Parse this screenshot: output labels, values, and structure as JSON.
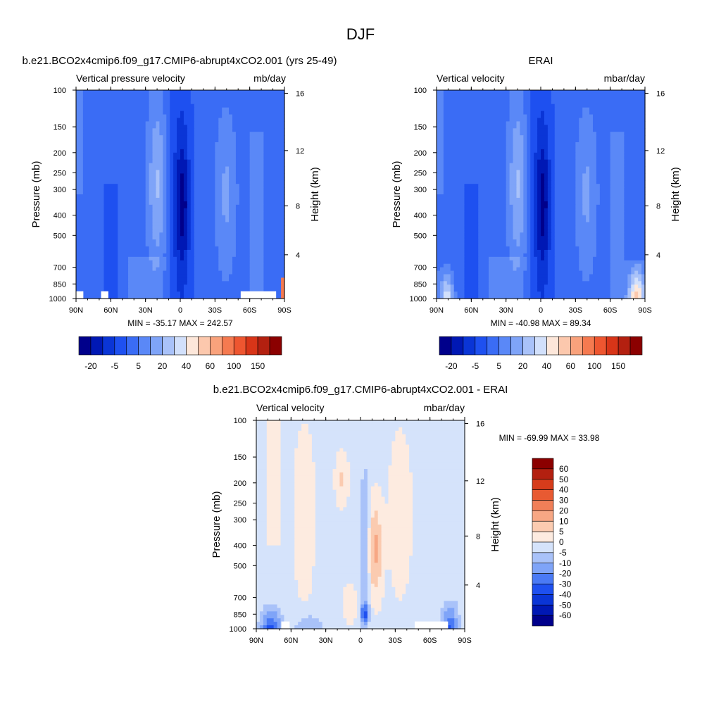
{
  "figure": {
    "season": "DJF",
    "colors": {
      "contour_levels_abs": [
        "#00008b",
        "#0018b4",
        "#0a35d6",
        "#1e50f0",
        "#3a6cf5",
        "#5a88f7",
        "#7fa4f8",
        "#a9c2f9",
        "#d2e0fb",
        "#fde7da",
        "#fcc8ad",
        "#f9a27c",
        "#f57a50",
        "#ee5630",
        "#d83518",
        "#b32010",
        "#8b0000"
      ],
      "contour_levels_diff": [
        "#00008b",
        "#0018b4",
        "#0a35d6",
        "#1e50f0",
        "#4a7af5",
        "#7fa4f8",
        "#a9c2f9",
        "#d5e3fb",
        "#fdebe0",
        "#fbcbb0",
        "#f7a784",
        "#f07f58",
        "#e85a32",
        "#d63c1b",
        "#b32010",
        "#8b0000"
      ]
    }
  },
  "chart_data": [
    {
      "type": "heatmap",
      "title": "b.e21.BCO2x4cmip6.f09_g17.CMIP6-abrupt4xCO2.001 (yrs 25-49)",
      "subtitle_left": "Vertical pressure velocity",
      "subtitle_right": "mb/day",
      "ylabel": "Pressure (mb)",
      "ylabel_right": "Height (km)",
      "x_ticks": [
        "90N",
        "60N",
        "30N",
        "0",
        "30S",
        "60S",
        "90S"
      ],
      "y_ticks": [
        "100",
        "150",
        "200",
        "250",
        "300",
        "400",
        "500",
        "700",
        "850",
        "1000"
      ],
      "y_ticks_right": [
        "16",
        "12",
        "8",
        "4"
      ],
      "stats": "MIN = -35.17  MAX = 242.57",
      "colorbar_labels": [
        "-20",
        "-5",
        "5",
        "20",
        "40",
        "60",
        "100",
        "150"
      ]
    },
    {
      "type": "heatmap",
      "title": "ERAI",
      "subtitle_left": "Vertical velocity",
      "subtitle_right": "mbar/day",
      "ylabel": "Pressure (mb)",
      "ylabel_right": "Height (km)",
      "x_ticks": [
        "90N",
        "60N",
        "30N",
        "0",
        "30S",
        "60S",
        "90S"
      ],
      "y_ticks": [
        "100",
        "150",
        "200",
        "250",
        "300",
        "400",
        "500",
        "700",
        "850",
        "1000"
      ],
      "y_ticks_right": [
        "16",
        "12",
        "8",
        "4"
      ],
      "stats": "MIN = -40.98  MAX =  89.34",
      "colorbar_labels": [
        "-20",
        "-5",
        "5",
        "20",
        "40",
        "60",
        "100",
        "150"
      ]
    },
    {
      "type": "heatmap",
      "title": "b.e21.BCO2x4cmip6.f09_g17.CMIP6-abrupt4xCO2.001 - ERAI",
      "subtitle_left": "Vertical velocity",
      "subtitle_right": "mbar/day",
      "ylabel": "Pressure (mb)",
      "ylabel_right": "Height (km)",
      "x_ticks": [
        "90N",
        "60N",
        "30N",
        "0",
        "30S",
        "60S",
        "90S"
      ],
      "y_ticks": [
        "100",
        "150",
        "200",
        "250",
        "300",
        "400",
        "500",
        "700",
        "850",
        "1000"
      ],
      "y_ticks_right": [
        "16",
        "12",
        "8",
        "4"
      ],
      "stats": "MIN = -69.99  MAX =  33.98",
      "colorbar_labels": [
        "60",
        "50",
        "40",
        "30",
        "20",
        "10",
        "5",
        "0",
        "-5",
        "-10",
        "-20",
        "-30",
        "-40",
        "-50",
        "-60"
      ]
    }
  ]
}
